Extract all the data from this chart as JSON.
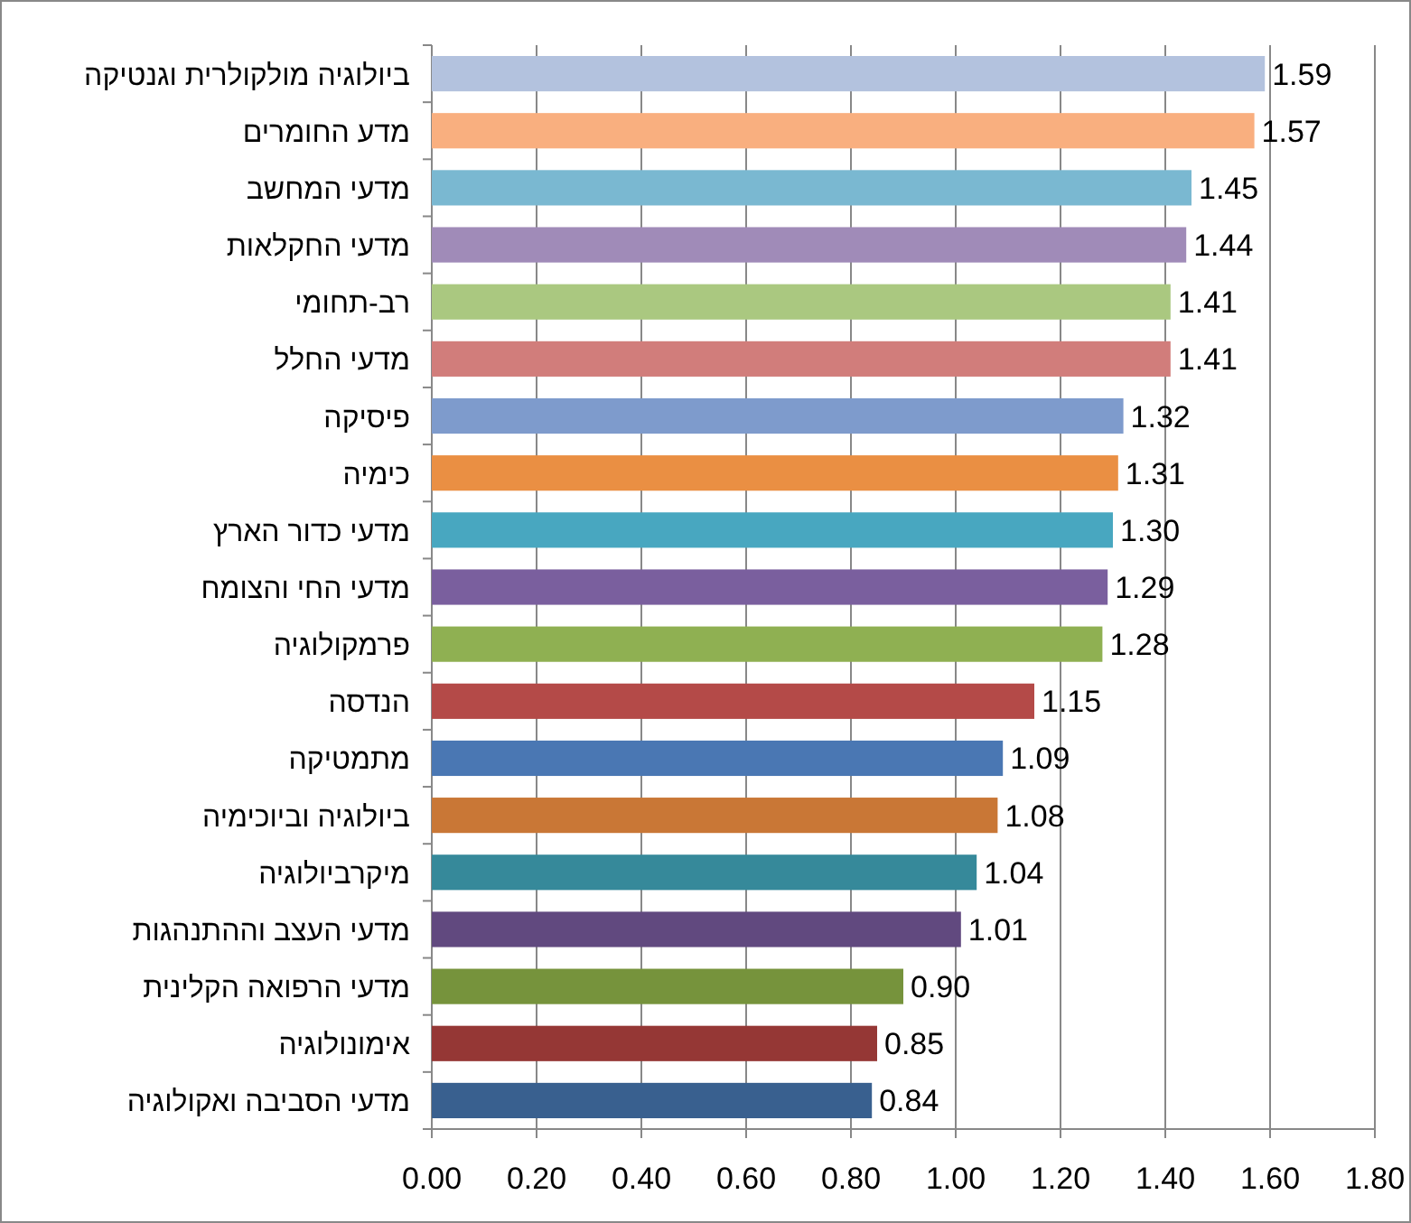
{
  "chart_data": {
    "type": "bar",
    "orientation": "horizontal",
    "categories": [
      "ביולוגיה מולקולרית וגנטיקה",
      "מדע החומרים",
      "מדעי המחשב",
      "מדעי החקלאות",
      "רב-תחומי",
      "מדעי החלל",
      "פיסיקה",
      "כימיה",
      "מדעי כדור הארץ",
      "מדעי החי והצומח",
      "פרמקולוגיה",
      "הנדסה",
      "מתמטיקה",
      "ביולוגיה וביוכימיה",
      "מיקרביולוגיה",
      "מדעי העצב וההתנהגות",
      "מדעי הרפואה הקלינית",
      "אימונולוגיה",
      "מדעי הסביבה ואקולוגיה"
    ],
    "values": [
      1.59,
      1.57,
      1.45,
      1.44,
      1.41,
      1.41,
      1.32,
      1.31,
      1.3,
      1.29,
      1.28,
      1.15,
      1.09,
      1.08,
      1.04,
      1.01,
      0.9,
      0.85,
      0.84
    ],
    "value_labels": [
      "1.59",
      "1.57",
      "1.45",
      "1.44",
      "1.41",
      "1.41",
      "1.32",
      "1.31",
      "1.30",
      "1.29",
      "1.28",
      "1.15",
      "1.09",
      "1.08",
      "1.04",
      "1.01",
      "0.90",
      "0.85",
      "0.84"
    ],
    "colors": [
      "#b3c2de",
      "#f9af7f",
      "#7ab8d1",
      "#a08bb8",
      "#aac880",
      "#d17d7b",
      "#7e9bcc",
      "#ea8f43",
      "#48a7c0",
      "#7a5f9e",
      "#8fb052",
      "#b44a48",
      "#4a77b3",
      "#c97736",
      "#36899a",
      "#61497f",
      "#76933c",
      "#953735",
      "#39608f"
    ],
    "xlim": [
      0,
      1.8
    ],
    "xticks": [
      {
        "value": 0,
        "label": "0.00"
      },
      {
        "value": 0.2,
        "label": "0.20"
      },
      {
        "value": 0.4,
        "label": "0.40"
      },
      {
        "value": 0.6,
        "label": "0.60"
      },
      {
        "value": 0.8,
        "label": "0.80"
      },
      {
        "value": 1.0,
        "label": "1.00"
      },
      {
        "value": 1.2,
        "label": "1.20"
      },
      {
        "value": 1.4,
        "label": "1.40"
      },
      {
        "value": 1.6,
        "label": "1.60"
      },
      {
        "value": 1.8,
        "label": "1.80"
      }
    ],
    "grid": "x"
  }
}
